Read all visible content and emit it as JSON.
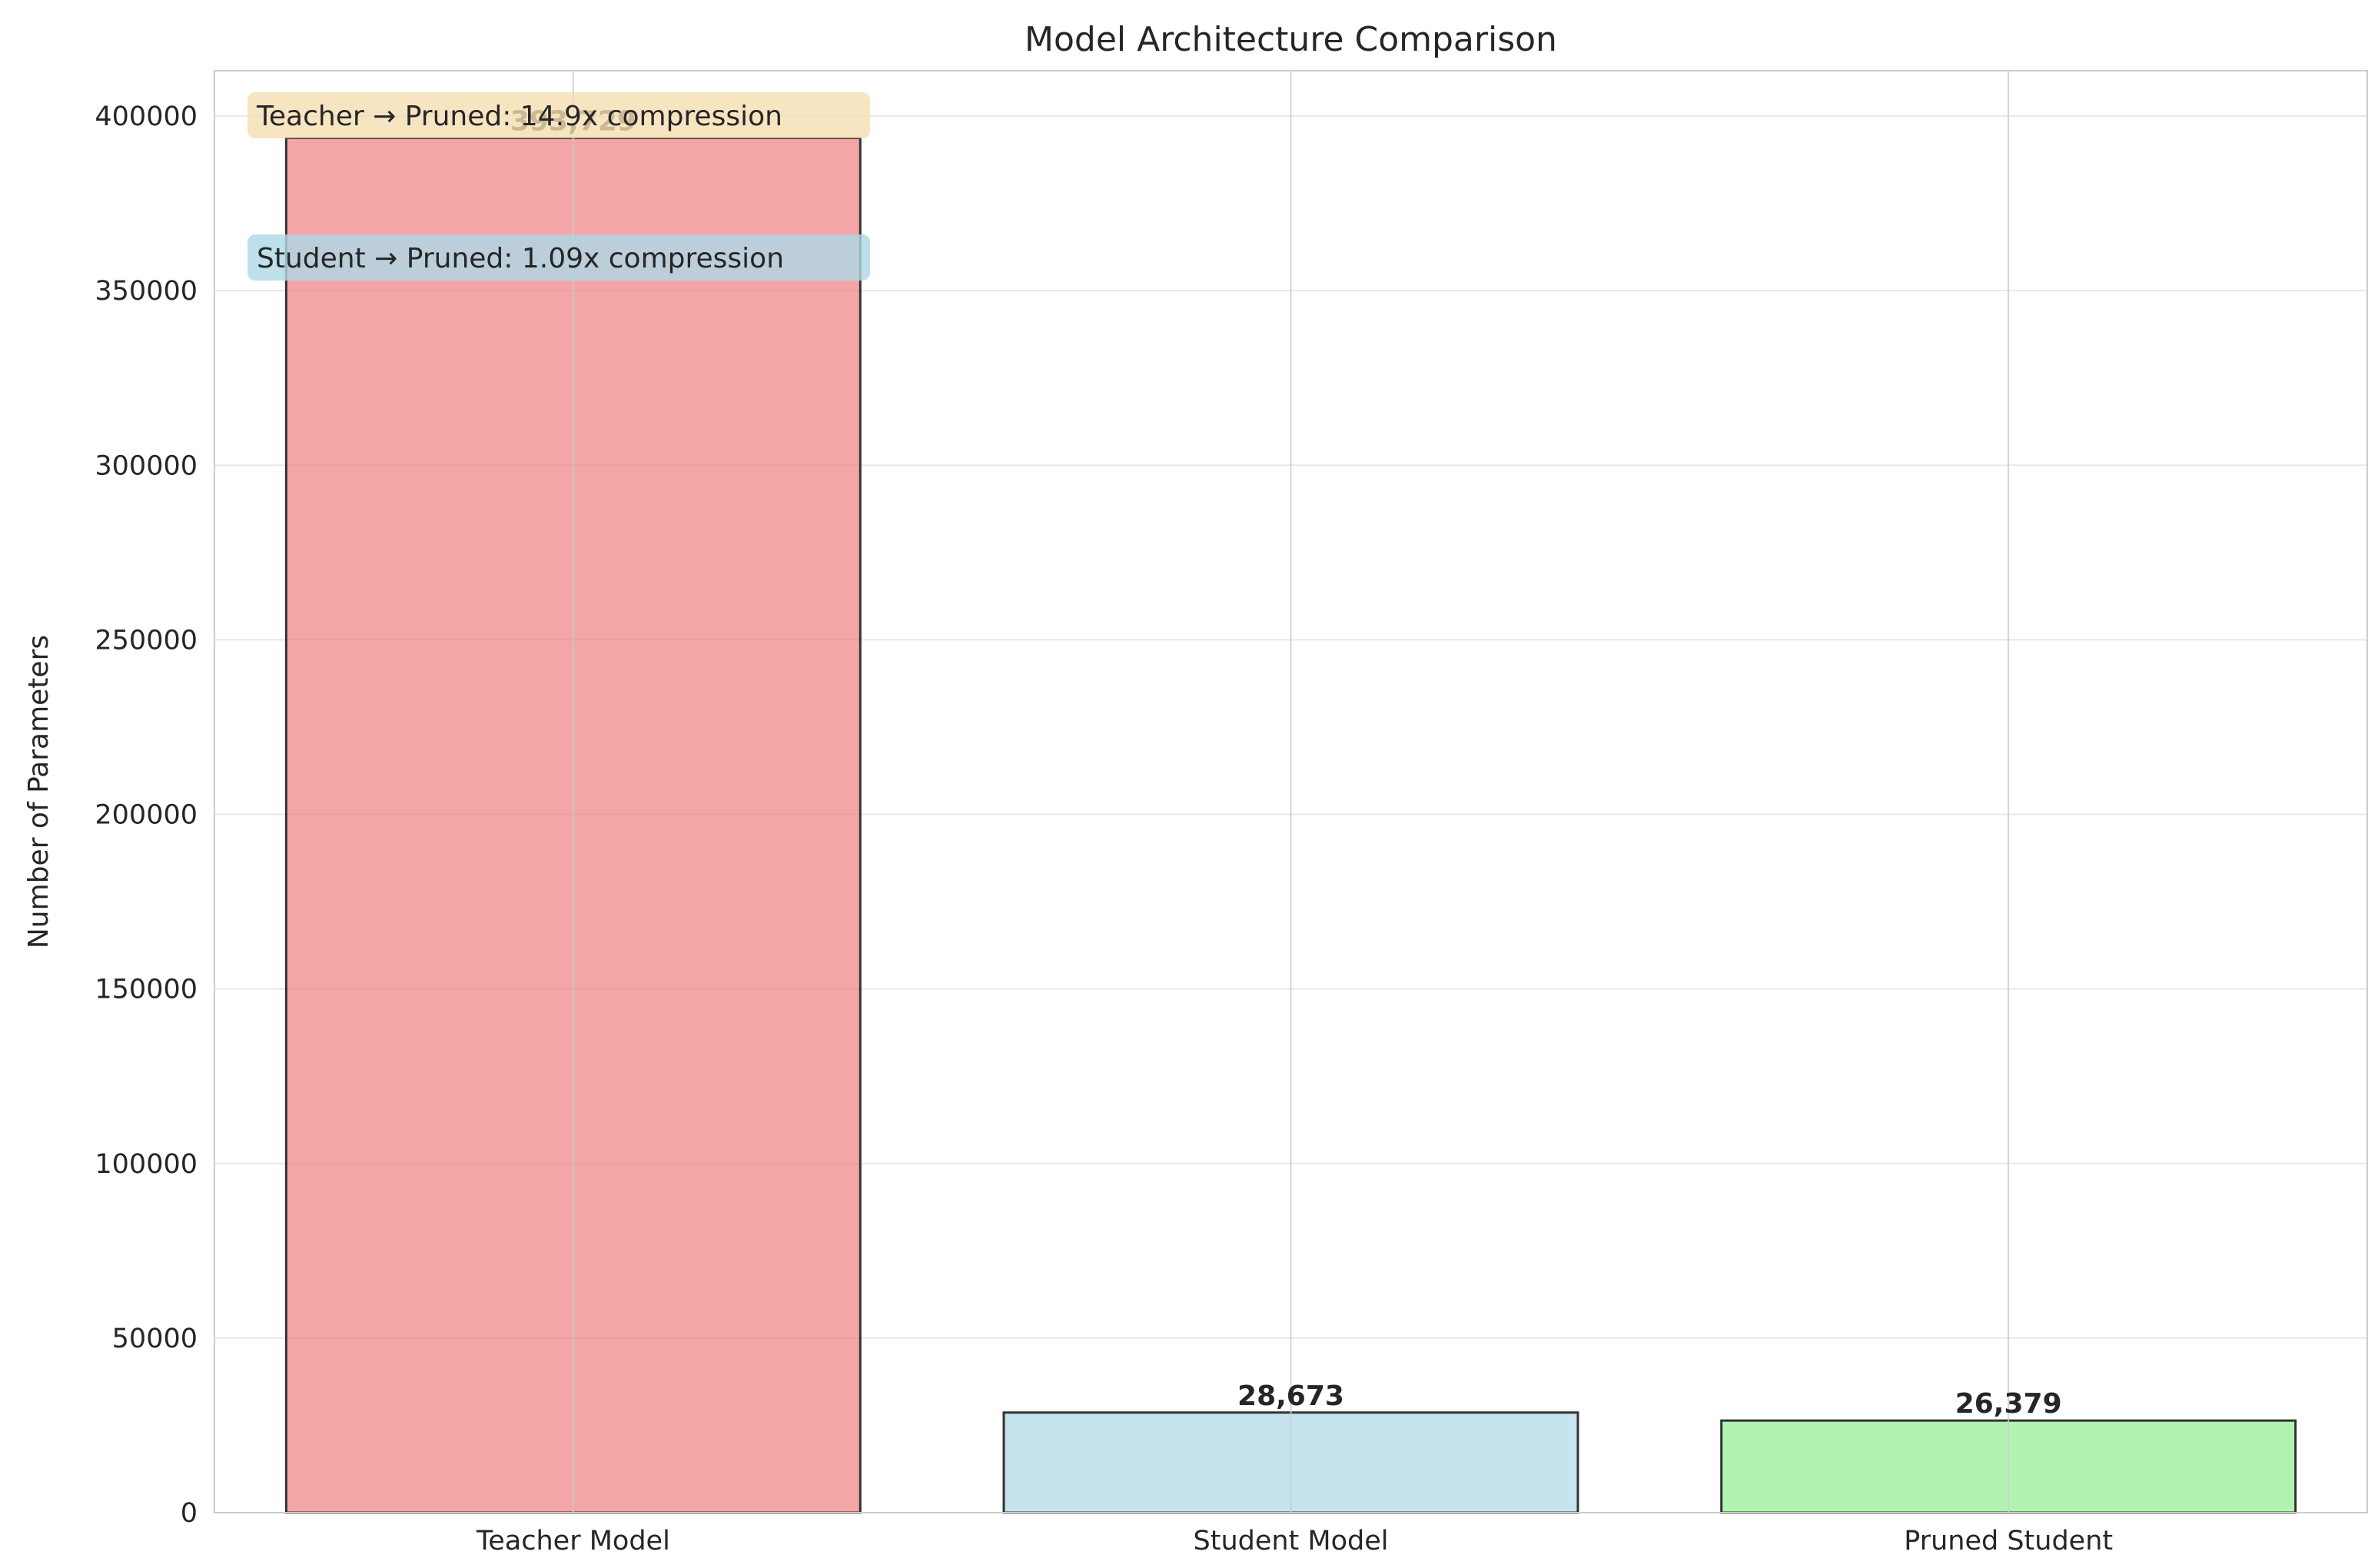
{
  "chart_data": {
    "type": "bar",
    "title": "Model Architecture Comparison",
    "xlabel": "",
    "ylabel": "Number of Parameters",
    "categories": [
      "Teacher Model",
      "Student Model",
      "Pruned Student"
    ],
    "values": [
      393729,
      28673,
      26379
    ],
    "data_labels": [
      "393,729",
      "28,673",
      "26,379"
    ],
    "colors": [
      "#f08080",
      "#add8e6",
      "#90ee90"
    ],
    "ylim": [
      0,
      413000
    ],
    "yticks": [
      0,
      50000,
      100000,
      150000,
      200000,
      250000,
      300000,
      350000,
      400000
    ],
    "ytick_labels": [
      "0",
      "50000",
      "100000",
      "150000",
      "200000",
      "250000",
      "300000",
      "350000",
      "400000"
    ],
    "grid": true,
    "annotations": [
      {
        "text": "Teacher → Pruned: 14.9x compression",
        "background": "#f5deb3"
      },
      {
        "text": "Student → Pruned: 1.09x compression",
        "background": "#add8e6"
      }
    ]
  }
}
